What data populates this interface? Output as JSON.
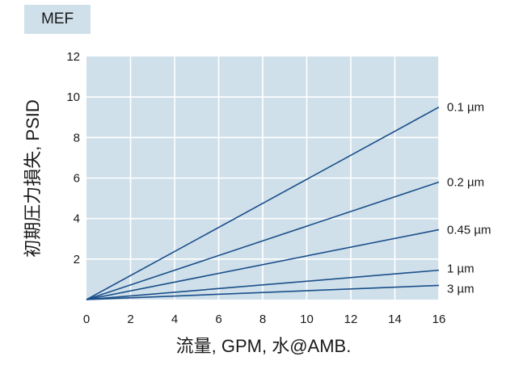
{
  "badge": "MEF",
  "chart_data": {
    "type": "line",
    "title": "",
    "xlabel": "流量, GPM, 水@AMB.",
    "ylabel": "初期圧力損失, PSID",
    "xlim": [
      0,
      16
    ],
    "ylim": [
      0,
      12
    ],
    "xticks": [
      0,
      2,
      4,
      6,
      8,
      10,
      12,
      14,
      16
    ],
    "yticks": [
      2,
      4,
      6,
      8,
      10,
      12
    ],
    "grid": true,
    "colors": {
      "plot_bg": "#cfe0ea",
      "grid": "#ffffff",
      "line": "#1b4f8a"
    },
    "series": [
      {
        "name": "0.1 µm",
        "x": [
          0,
          16
        ],
        "y": [
          0,
          9.5
        ]
      },
      {
        "name": "0.2 µm",
        "x": [
          0,
          16
        ],
        "y": [
          0,
          5.8
        ]
      },
      {
        "name": "0.45 µm",
        "x": [
          0,
          16
        ],
        "y": [
          0,
          3.45
        ]
      },
      {
        "name": "1 µm",
        "x": [
          0,
          16
        ],
        "y": [
          0,
          1.45
        ]
      },
      {
        "name": "3 µm",
        "x": [
          0,
          16
        ],
        "y": [
          0,
          0.7
        ]
      }
    ]
  }
}
